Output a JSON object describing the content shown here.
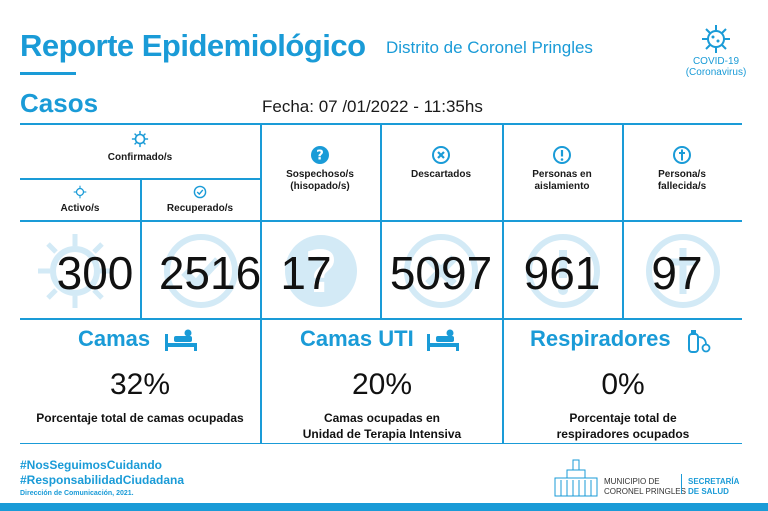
{
  "header": {
    "title": "Reporte Epidemiológico",
    "subtitle": "Distrito de Coronel Pringles",
    "section": "Casos",
    "fecha": "Fecha:  07 /01/2022 - 11:35hs",
    "badge_line1": "COVID-19",
    "badge_line2": "(Coronavirus)"
  },
  "table": {
    "confirmados_label": "Confirmado/s",
    "activos_label": "Activo/s",
    "recuperados_label": "Recuperado/s",
    "sospechosos_label_1": "Sospechoso/s",
    "sospechosos_label_2": "(hisopado/s)",
    "descartados_label": "Descartados",
    "aislamiento_label_1": "Personas en",
    "aislamiento_label_2": "aislamiento",
    "fallecidos_label_1": "Persona/s",
    "fallecidos_label_2": "fallecida/s",
    "values": {
      "activos": "300",
      "recuperados": "2516",
      "sospechosos": "17",
      "descartados": "5097",
      "aislamiento": "961",
      "fallecidos": "97"
    }
  },
  "camas": {
    "title": "Camas",
    "pct": "32%",
    "desc_1": "Porcentaje total de camas ocupadas"
  },
  "camas_uti": {
    "title": "Camas UTI",
    "pct": "20%",
    "desc_1": "Camas ocupadas en",
    "desc_2": "Unidad de Terapia Intensiva"
  },
  "respiradores": {
    "title": "Respiradores",
    "pct": "0%",
    "desc_1": "Porcentaje total de",
    "desc_2": "respiradores ocupados"
  },
  "footer": {
    "hashtag_1": "#NosSeguimosCuidando",
    "hashtag_2": "#ResponsabilidadCiudadana",
    "credit": "Dirección de Comunicación, 2021.",
    "muni_1": "MUNICIPIO DE",
    "muni_2": "CORONEL PRINGLES",
    "sec_1": "SECRETARÍA",
    "sec_2": "DE SALUD"
  },
  "colors": {
    "accent": "#1a9bd7",
    "watermark": "#dbeef8"
  }
}
